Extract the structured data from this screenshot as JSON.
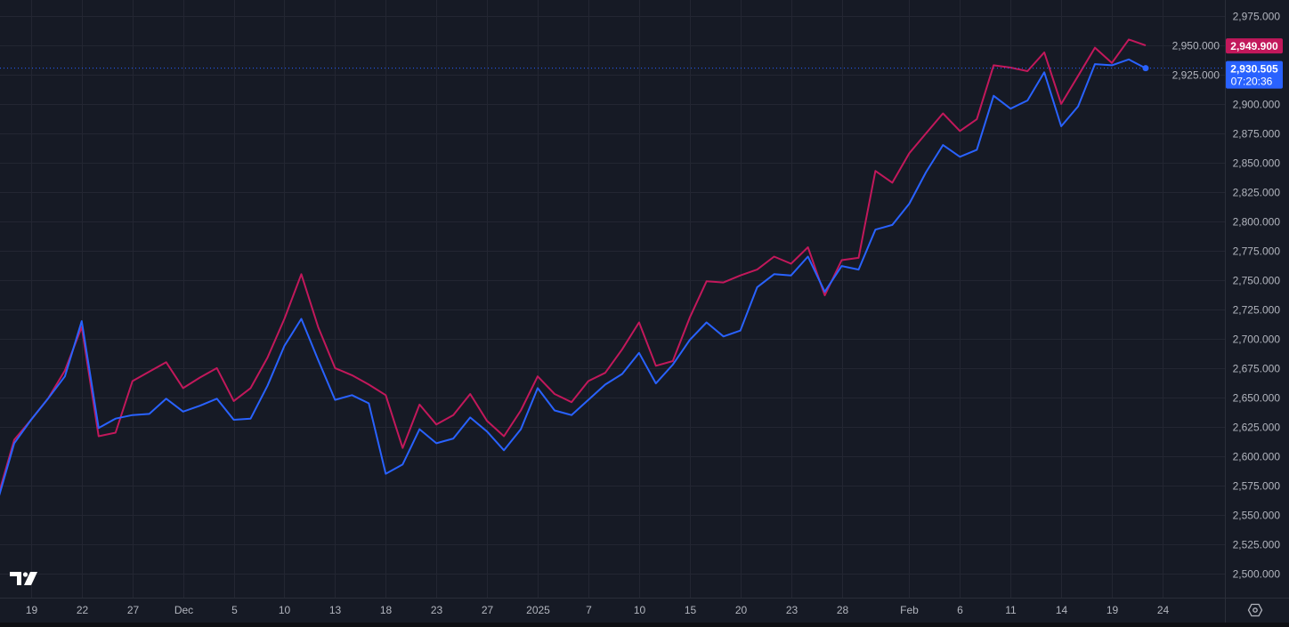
{
  "chart_data": {
    "type": "line",
    "dates": [
      "2024-11-15",
      "2024-11-18",
      "2024-11-19",
      "2024-11-20",
      "2024-11-21",
      "2024-11-22",
      "2024-11-25",
      "2024-11-26",
      "2024-11-27",
      "2024-11-28",
      "2024-11-29",
      "2024-12-02",
      "2024-12-03",
      "2024-12-04",
      "2024-12-05",
      "2024-12-06",
      "2024-12-09",
      "2024-12-10",
      "2024-12-11",
      "2024-12-12",
      "2024-12-13",
      "2024-12-16",
      "2024-12-17",
      "2024-12-18",
      "2024-12-19",
      "2024-12-20",
      "2024-12-23",
      "2024-12-24",
      "2024-12-26",
      "2024-12-27",
      "2024-12-30",
      "2024-12-31",
      "2025-01-02",
      "2025-01-03",
      "2025-01-06",
      "2025-01-07",
      "2025-01-08",
      "2025-01-09",
      "2025-01-10",
      "2025-01-13",
      "2025-01-14",
      "2025-01-15",
      "2025-01-16",
      "2025-01-17",
      "2025-01-20",
      "2025-01-21",
      "2025-01-22",
      "2025-01-23",
      "2025-01-24",
      "2025-01-27",
      "2025-01-28",
      "2025-01-29",
      "2025-01-30",
      "2025-01-31",
      "2025-02-03",
      "2025-02-04",
      "2025-02-05",
      "2025-02-06",
      "2025-02-07",
      "2025-02-10",
      "2025-02-11",
      "2025-02-12",
      "2025-02-13",
      "2025-02-14",
      "2025-02-17",
      "2025-02-18",
      "2025-02-19",
      "2025-02-20",
      "2025-02-21"
    ],
    "series": [
      {
        "color": "#c2185b",
        "values": [
          2564,
          2614,
          2631,
          2649,
          2673,
          2710,
          2617,
          2620,
          2664,
          2672,
          2680,
          2658,
          2667,
          2675,
          2647,
          2658,
          2684,
          2717,
          2755,
          2710,
          2675,
          2669,
          2661,
          2652,
          2607,
          2644,
          2627,
          2635,
          2653,
          2630,
          2617,
          2639,
          2668,
          2653,
          2646,
          2664,
          2671,
          2691,
          2714,
          2677,
          2681,
          2718,
          2749,
          2748,
          2754,
          2759,
          2770,
          2764,
          2778,
          2737,
          2767,
          2769,
          2843,
          2833,
          2858,
          2875,
          2892,
          2877,
          2887,
          2933,
          2931,
          2928,
          2944,
          2900,
          2924,
          2948,
          2935,
          2955,
          2949.9
        ]
      },
      {
        "color": "#2962ff",
        "values": [
          2561,
          2611,
          2631,
          2649,
          2668,
          2715,
          2624,
          2632,
          2635,
          2636,
          2649,
          2638,
          2643,
          2649,
          2631,
          2632,
          2660,
          2694,
          2717,
          2682,
          2648,
          2652,
          2645,
          2585,
          2593,
          2623,
          2611,
          2615,
          2633,
          2621,
          2605,
          2623,
          2658,
          2639,
          2635,
          2648,
          2661,
          2670,
          2688,
          2662,
          2678,
          2699,
          2714,
          2702,
          2707,
          2744,
          2755,
          2754,
          2770,
          2740,
          2762,
          2759,
          2793,
          2797,
          2815,
          2842,
          2865,
          2855,
          2861,
          2907,
          2896,
          2903,
          2927,
          2881,
          2898,
          2934,
          2933,
          2938,
          2930.505
        ]
      }
    ],
    "ylim": [
      2479.5,
      2988.6
    ],
    "yticks": [
      "2,500.000",
      "2,525.000",
      "2,550.000",
      "2,575.000",
      "2,600.000",
      "2,625.000",
      "2,650.000",
      "2,675.000",
      "2,700.000",
      "2,725.000",
      "2,750.000",
      "2,775.000",
      "2,800.000",
      "2,825.000",
      "2,850.000",
      "2,875.000",
      "2,900.000",
      "2,925.000",
      "2,950.000",
      "2,975.000"
    ],
    "ytick_values": [
      2500,
      2525,
      2550,
      2575,
      2600,
      2625,
      2650,
      2675,
      2700,
      2725,
      2750,
      2775,
      2800,
      2825,
      2850,
      2875,
      2900,
      2925,
      2950,
      2975
    ],
    "xticks": [
      {
        "label": "19",
        "date": "2024-11-19"
      },
      {
        "label": "22",
        "date": "2024-11-22"
      },
      {
        "label": "27",
        "date": "2024-11-27"
      },
      {
        "label": "Dec",
        "date": "2024-12-02"
      },
      {
        "label": "5",
        "date": "2024-12-05"
      },
      {
        "label": "10",
        "date": "2024-12-10"
      },
      {
        "label": "13",
        "date": "2024-12-13"
      },
      {
        "label": "18",
        "date": "2024-12-18"
      },
      {
        "label": "23",
        "date": "2024-12-23"
      },
      {
        "label": "27",
        "date": "2024-12-27"
      },
      {
        "label": "2025",
        "date": "2025-01-02"
      },
      {
        "label": "7",
        "date": "2025-01-07"
      },
      {
        "label": "10",
        "date": "2025-01-10"
      },
      {
        "label": "15",
        "date": "2025-01-15"
      },
      {
        "label": "20",
        "date": "2025-01-20"
      },
      {
        "label": "23",
        "date": "2025-01-23"
      },
      {
        "label": "28",
        "date": "2025-01-28"
      },
      {
        "label": "Feb",
        "date": "2025-02-03"
      },
      {
        "label": "6",
        "date": "2025-02-06"
      },
      {
        "label": "11",
        "date": "2025-02-11"
      },
      {
        "label": "14",
        "date": "2025-02-14"
      },
      {
        "label": "19",
        "date": "2025-02-19"
      },
      {
        "label": "24",
        "date": "2025-02-24"
      }
    ],
    "last_price_labels": {
      "red": {
        "text": "2,949.900",
        "value": 2949.9
      },
      "blue": {
        "text": "2,930.505",
        "countdown": "07:20:36",
        "value": 2930.505
      }
    },
    "grid": true,
    "background": "#161a25"
  },
  "logo_text": "TV",
  "settings_icon": "gear-icon"
}
